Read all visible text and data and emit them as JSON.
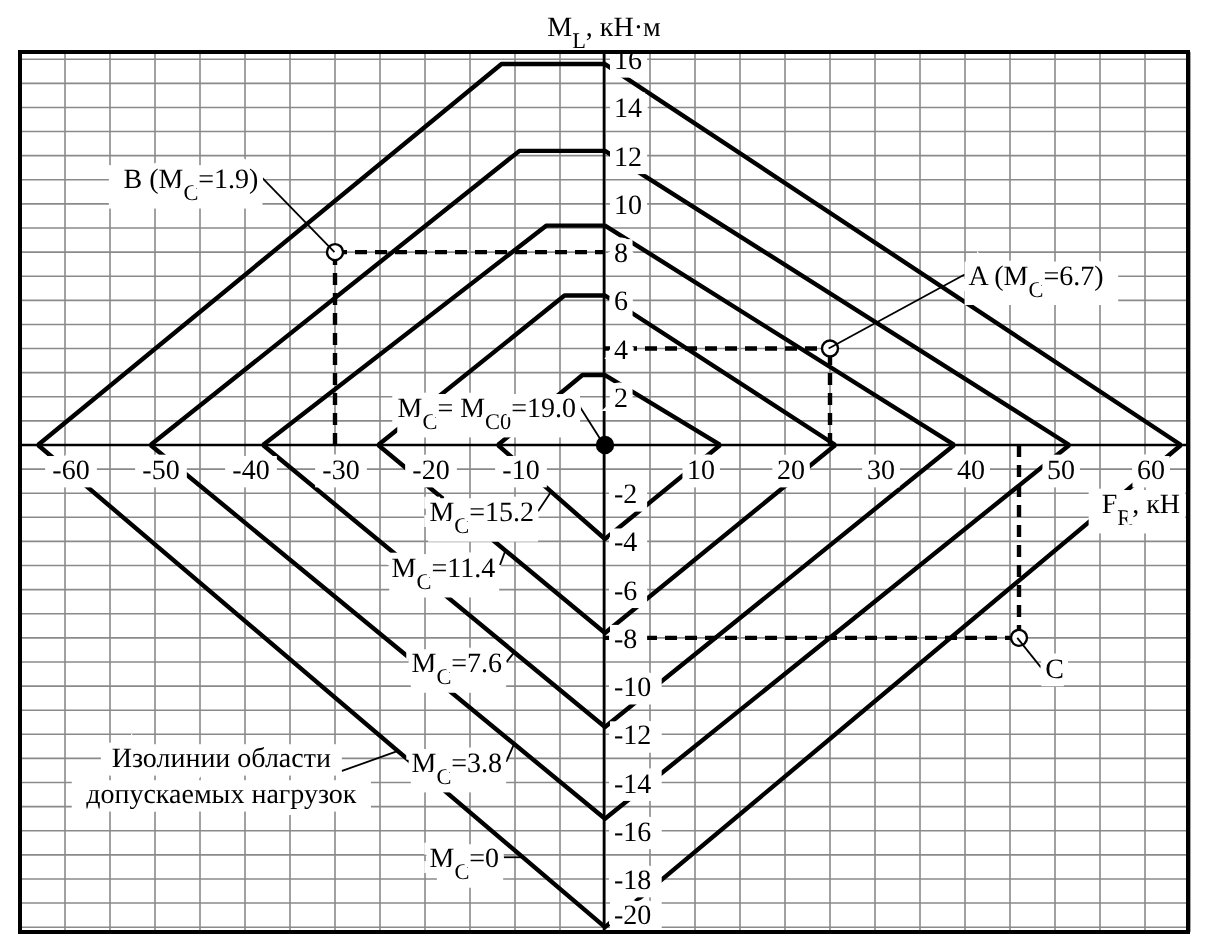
{
  "chart_data": {
    "type": "line",
    "xlabel": "F$_{R}$, кН",
    "ylabel": "M$_{L}$, кН·м",
    "xlim": [
      -65,
      65
    ],
    "ylim": [
      -20.2,
      16.3
    ],
    "xticks": [
      -60,
      {
        "value": -55,
        "label": null
      },
      -50,
      {
        "value": -45,
        "label": null
      },
      -40,
      {
        "value": -35,
        "label": null
      },
      -30,
      {
        "value": -25,
        "label": null
      },
      -20,
      {
        "value": -15,
        "label": null
      },
      -10,
      {
        "value": -5,
        "label": null
      },
      {
        "value": 0,
        "label": null
      },
      {
        "value": 5,
        "label": null
      },
      10,
      {
        "value": 15,
        "label": null
      },
      20,
      {
        "value": 25,
        "label": null
      },
      30,
      {
        "value": 35,
        "label": null
      },
      40,
      {
        "value": 45,
        "label": null
      },
      50,
      {
        "value": 55,
        "label": null
      },
      60
    ],
    "yticks": [
      -20,
      {
        "value": -19,
        "label": null
      },
      -18,
      {
        "value": -17,
        "label": null
      },
      -16,
      {
        "value": -15,
        "label": null
      },
      -14,
      {
        "value": -13,
        "label": null
      },
      -12,
      {
        "value": -11,
        "label": null
      },
      -10,
      {
        "value": -9,
        "label": null
      },
      -8,
      {
        "value": -7,
        "label": null
      },
      -6,
      {
        "value": -5,
        "label": null
      },
      -4,
      {
        "value": -3,
        "label": null
      },
      -2,
      {
        "value": -1,
        "label": null
      },
      {
        "value": 0,
        "label": null
      },
      {
        "value": 1,
        "label": null
      },
      2,
      {
        "value": 3,
        "label": null
      },
      4,
      {
        "value": 5,
        "label": null
      },
      6,
      {
        "value": 7,
        "label": null
      },
      8,
      {
        "value": 9,
        "label": null
      },
      10,
      {
        "value": 11,
        "label": null
      },
      12,
      {
        "value": 13,
        "label": null
      },
      14,
      {
        "value": 15,
        "label": null
      },
      16
    ],
    "grid": true,
    "line_style": "solid",
    "marker": "none",
    "series": [
      {
        "color": "#000000",
        "x": [
          -63,
          -11.5,
          0,
          64
        ],
        "values": [
          0,
          15.8,
          15.8,
          0
        ]
      },
      {
        "color": "#000000",
        "x": [
          -63,
          0,
          64
        ],
        "values": [
          0,
          -20,
          0
        ]
      },
      {
        "color": "#000000",
        "x": [
          -50.5,
          -9.5,
          0,
          51.6
        ],
        "values": [
          0,
          12.2,
          12.2,
          0
        ]
      },
      {
        "color": "#000000",
        "x": [
          -50.5,
          0,
          51.6
        ],
        "values": [
          0,
          -15.5,
          0
        ]
      },
      {
        "color": "#000000",
        "x": [
          -38,
          -6.5,
          0,
          38.8
        ],
        "values": [
          0,
          9.1,
          9.1,
          0
        ]
      },
      {
        "color": "#000000",
        "x": [
          -38,
          0,
          38.8
        ],
        "values": [
          0,
          -11.7,
          0
        ]
      },
      {
        "color": "#000000",
        "x": [
          -25.2,
          -4.5,
          0,
          25.6
        ],
        "values": [
          0,
          6.2,
          6.2,
          0
        ]
      },
      {
        "color": "#000000",
        "x": [
          -25.2,
          0,
          25.6
        ],
        "values": [
          0,
          -7.8,
          0
        ]
      },
      {
        "color": "#000000",
        "x": [
          -11.9,
          -2.5,
          0,
          12.8
        ],
        "values": [
          0,
          2.9,
          2.9,
          0
        ]
      },
      {
        "color": "#000000",
        "x": [
          -11.9,
          0,
          12.8
        ],
        "values": [
          0,
          -3.9,
          0
        ]
      },
      {
        "color": "#000000",
        "line_style": "dashed",
        "x": [
          -30,
          -30
        ],
        "values": [
          0,
          8
        ]
      },
      {
        "color": "#000000",
        "line_style": "dashed",
        "x": [
          -30,
          0
        ],
        "values": [
          8,
          8
        ]
      },
      {
        "color": "#000000",
        "line_style": "dashed",
        "x": [
          25,
          25
        ],
        "values": [
          0,
          4
        ]
      },
      {
        "color": "#000000",
        "line_style": "dashed",
        "x": [
          0,
          25
        ],
        "values": [
          4,
          4
        ]
      },
      {
        "color": "#000000",
        "line_style": "dashed",
        "x": [
          46,
          46
        ],
        "values": [
          0,
          -8
        ]
      },
      {
        "color": "#000000",
        "line_style": "dashed",
        "x": [
          0,
          46
        ],
        "values": [
          -8,
          -8
        ]
      },
      {
        "type": "scatter",
        "color": "#ffffff",
        "marker": "circle",
        "x": [
          -30,
          25,
          46
        ],
        "values": [
          8,
          4,
          -8
        ]
      },
      {
        "type": "scatter",
        "color": "#000000",
        "marker": "circle",
        "x": [
          0
        ],
        "values": [
          0
        ]
      }
    ],
    "annotations": [
      {
        "text": "B (M$_{C}$=1.9)",
        "x": -30,
        "y": 8
      },
      {
        "text": "A (M$_{C}$=6.7)",
        "x": 25,
        "y": 4
      },
      {
        "text": "C",
        "x": 46,
        "y": -8
      },
      {
        "text": "M$_{C}$= M$_{C0}$=19.0",
        "x": 0,
        "y": 0
      },
      {
        "text": "M$_{C}$=15.2",
        "x": -6,
        "y": -2
      },
      {
        "text": "M$_{C}$=11.4",
        "x": -11,
        "y": -4.4
      },
      {
        "text": "M$_{C}$=7.6",
        "x": -10,
        "y": -8.6
      },
      {
        "text": "M$_{C}$=3.8",
        "x": -10,
        "y": -12.4
      },
      {
        "text": "M$_{C}$=0",
        "x": -9,
        "y": -17.1
      },
      {
        "text": "Изолинии области допускаемых нагрузок",
        "x": -23,
        "y": -12.7
      }
    ]
  }
}
